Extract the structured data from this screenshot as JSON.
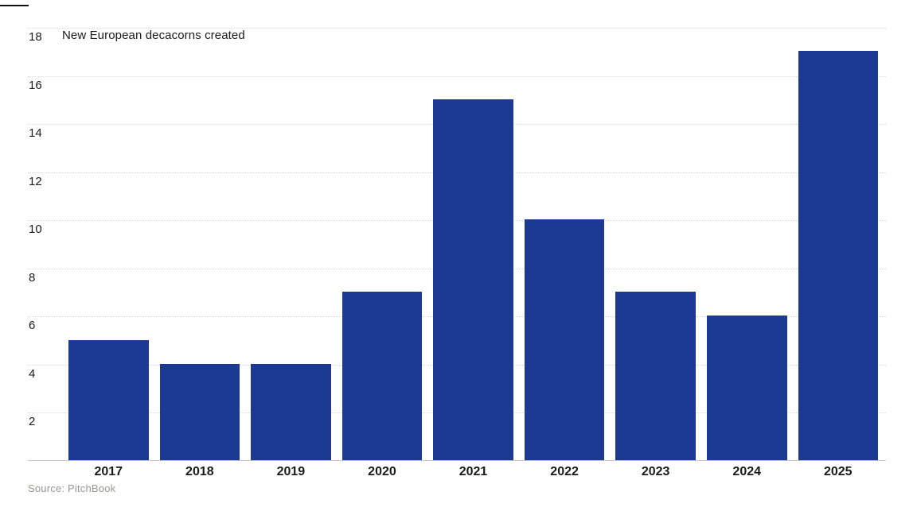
{
  "chart_data": {
    "type": "bar",
    "title": "New European decacorns created",
    "categories": [
      "2017",
      "2018",
      "2019",
      "2020",
      "2021",
      "2022",
      "2023",
      "2024",
      "2025"
    ],
    "values": [
      5,
      4,
      4,
      7,
      15,
      10,
      7,
      6,
      17
    ],
    "xlabel": "",
    "ylabel": "",
    "ylim": [
      0,
      18
    ],
    "yticks": [
      2,
      4,
      6,
      8,
      10,
      12,
      14,
      16,
      18
    ],
    "grid": "horizontal-dotted",
    "legend": "none",
    "source": "Source: PitchBook"
  },
  "colors": {
    "bar": "#1c3a94",
    "gridline": "#d9d9d9",
    "axis_baseline": "#c4c4c4",
    "text": "#1a1a1a",
    "source_text": "#9b968f",
    "top_rule": "#111111",
    "background": "#ffffff"
  }
}
